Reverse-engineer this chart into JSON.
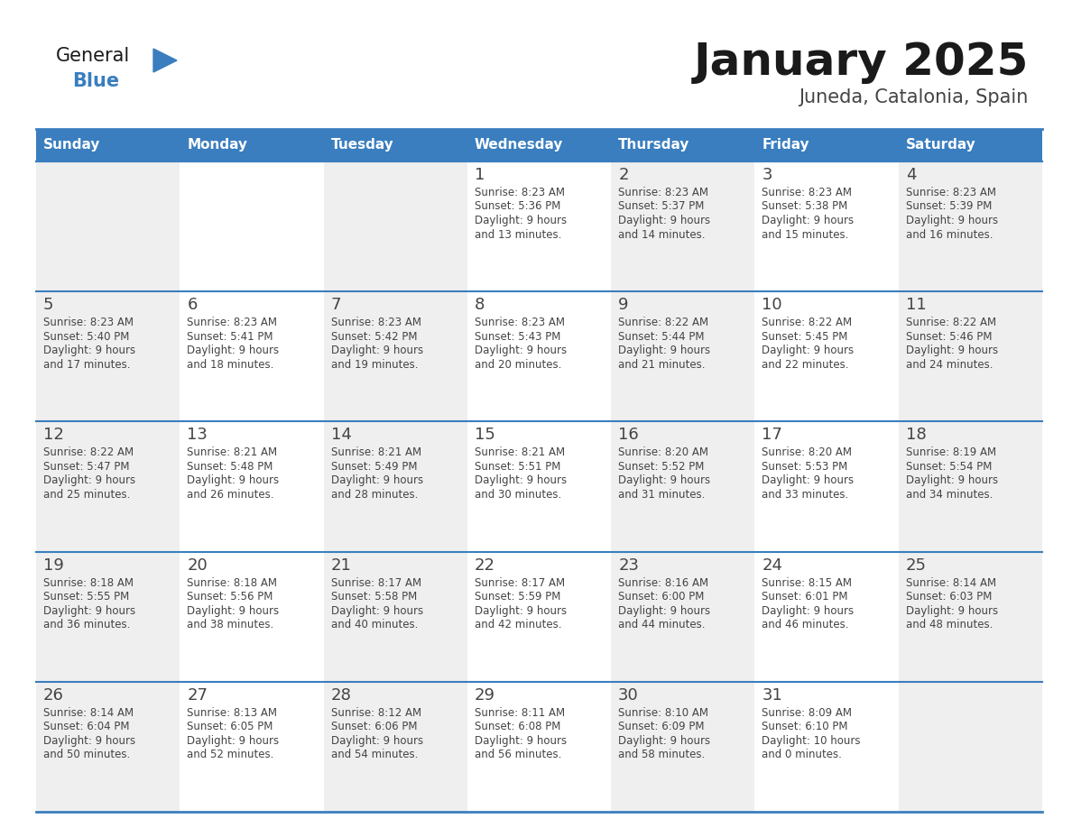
{
  "title": "January 2025",
  "subtitle": "Juneda, Catalonia, Spain",
  "header_color": "#3a7ebf",
  "header_text_color": "#ffffff",
  "cell_bg_even": "#efefef",
  "cell_bg_odd": "#ffffff",
  "separator_color": "#3a7ebf",
  "text_color": "#444444",
  "days_of_week": [
    "Sunday",
    "Monday",
    "Tuesday",
    "Wednesday",
    "Thursday",
    "Friday",
    "Saturday"
  ],
  "calendar_data": [
    [
      {
        "day": "",
        "sunrise": "",
        "sunset": "",
        "daylight_line1": "",
        "daylight_line2": ""
      },
      {
        "day": "",
        "sunrise": "",
        "sunset": "",
        "daylight_line1": "",
        "daylight_line2": ""
      },
      {
        "day": "",
        "sunrise": "",
        "sunset": "",
        "daylight_line1": "",
        "daylight_line2": ""
      },
      {
        "day": "1",
        "sunrise": "8:23 AM",
        "sunset": "5:36 PM",
        "daylight_line1": "9 hours",
        "daylight_line2": "and 13 minutes."
      },
      {
        "day": "2",
        "sunrise": "8:23 AM",
        "sunset": "5:37 PM",
        "daylight_line1": "9 hours",
        "daylight_line2": "and 14 minutes."
      },
      {
        "day": "3",
        "sunrise": "8:23 AM",
        "sunset": "5:38 PM",
        "daylight_line1": "9 hours",
        "daylight_line2": "and 15 minutes."
      },
      {
        "day": "4",
        "sunrise": "8:23 AM",
        "sunset": "5:39 PM",
        "daylight_line1": "9 hours",
        "daylight_line2": "and 16 minutes."
      }
    ],
    [
      {
        "day": "5",
        "sunrise": "8:23 AM",
        "sunset": "5:40 PM",
        "daylight_line1": "9 hours",
        "daylight_line2": "and 17 minutes."
      },
      {
        "day": "6",
        "sunrise": "8:23 AM",
        "sunset": "5:41 PM",
        "daylight_line1": "9 hours",
        "daylight_line2": "and 18 minutes."
      },
      {
        "day": "7",
        "sunrise": "8:23 AM",
        "sunset": "5:42 PM",
        "daylight_line1": "9 hours",
        "daylight_line2": "and 19 minutes."
      },
      {
        "day": "8",
        "sunrise": "8:23 AM",
        "sunset": "5:43 PM",
        "daylight_line1": "9 hours",
        "daylight_line2": "and 20 minutes."
      },
      {
        "day": "9",
        "sunrise": "8:22 AM",
        "sunset": "5:44 PM",
        "daylight_line1": "9 hours",
        "daylight_line2": "and 21 minutes."
      },
      {
        "day": "10",
        "sunrise": "8:22 AM",
        "sunset": "5:45 PM",
        "daylight_line1": "9 hours",
        "daylight_line2": "and 22 minutes."
      },
      {
        "day": "11",
        "sunrise": "8:22 AM",
        "sunset": "5:46 PM",
        "daylight_line1": "9 hours",
        "daylight_line2": "and 24 minutes."
      }
    ],
    [
      {
        "day": "12",
        "sunrise": "8:22 AM",
        "sunset": "5:47 PM",
        "daylight_line1": "9 hours",
        "daylight_line2": "and 25 minutes."
      },
      {
        "day": "13",
        "sunrise": "8:21 AM",
        "sunset": "5:48 PM",
        "daylight_line1": "9 hours",
        "daylight_line2": "and 26 minutes."
      },
      {
        "day": "14",
        "sunrise": "8:21 AM",
        "sunset": "5:49 PM",
        "daylight_line1": "9 hours",
        "daylight_line2": "and 28 minutes."
      },
      {
        "day": "15",
        "sunrise": "8:21 AM",
        "sunset": "5:51 PM",
        "daylight_line1": "9 hours",
        "daylight_line2": "and 30 minutes."
      },
      {
        "day": "16",
        "sunrise": "8:20 AM",
        "sunset": "5:52 PM",
        "daylight_line1": "9 hours",
        "daylight_line2": "and 31 minutes."
      },
      {
        "day": "17",
        "sunrise": "8:20 AM",
        "sunset": "5:53 PM",
        "daylight_line1": "9 hours",
        "daylight_line2": "and 33 minutes."
      },
      {
        "day": "18",
        "sunrise": "8:19 AM",
        "sunset": "5:54 PM",
        "daylight_line1": "9 hours",
        "daylight_line2": "and 34 minutes."
      }
    ],
    [
      {
        "day": "19",
        "sunrise": "8:18 AM",
        "sunset": "5:55 PM",
        "daylight_line1": "9 hours",
        "daylight_line2": "and 36 minutes."
      },
      {
        "day": "20",
        "sunrise": "8:18 AM",
        "sunset": "5:56 PM",
        "daylight_line1": "9 hours",
        "daylight_line2": "and 38 minutes."
      },
      {
        "day": "21",
        "sunrise": "8:17 AM",
        "sunset": "5:58 PM",
        "daylight_line1": "9 hours",
        "daylight_line2": "and 40 minutes."
      },
      {
        "day": "22",
        "sunrise": "8:17 AM",
        "sunset": "5:59 PM",
        "daylight_line1": "9 hours",
        "daylight_line2": "and 42 minutes."
      },
      {
        "day": "23",
        "sunrise": "8:16 AM",
        "sunset": "6:00 PM",
        "daylight_line1": "9 hours",
        "daylight_line2": "and 44 minutes."
      },
      {
        "day": "24",
        "sunrise": "8:15 AM",
        "sunset": "6:01 PM",
        "daylight_line1": "9 hours",
        "daylight_line2": "and 46 minutes."
      },
      {
        "day": "25",
        "sunrise": "8:14 AM",
        "sunset": "6:03 PM",
        "daylight_line1": "9 hours",
        "daylight_line2": "and 48 minutes."
      }
    ],
    [
      {
        "day": "26",
        "sunrise": "8:14 AM",
        "sunset": "6:04 PM",
        "daylight_line1": "9 hours",
        "daylight_line2": "and 50 minutes."
      },
      {
        "day": "27",
        "sunrise": "8:13 AM",
        "sunset": "6:05 PM",
        "daylight_line1": "9 hours",
        "daylight_line2": "and 52 minutes."
      },
      {
        "day": "28",
        "sunrise": "8:12 AM",
        "sunset": "6:06 PM",
        "daylight_line1": "9 hours",
        "daylight_line2": "and 54 minutes."
      },
      {
        "day": "29",
        "sunrise": "8:11 AM",
        "sunset": "6:08 PM",
        "daylight_line1": "9 hours",
        "daylight_line2": "and 56 minutes."
      },
      {
        "day": "30",
        "sunrise": "8:10 AM",
        "sunset": "6:09 PM",
        "daylight_line1": "9 hours",
        "daylight_line2": "and 58 minutes."
      },
      {
        "day": "31",
        "sunrise": "8:09 AM",
        "sunset": "6:10 PM",
        "daylight_line1": "10 hours",
        "daylight_line2": "and 0 minutes."
      },
      {
        "day": "",
        "sunrise": "",
        "sunset": "",
        "daylight_line1": "",
        "daylight_line2": ""
      }
    ]
  ],
  "logo_text_general": "General",
  "logo_text_blue": "Blue",
  "logo_color_general": "#1a1a1a",
  "logo_color_blue": "#3a7ebf"
}
